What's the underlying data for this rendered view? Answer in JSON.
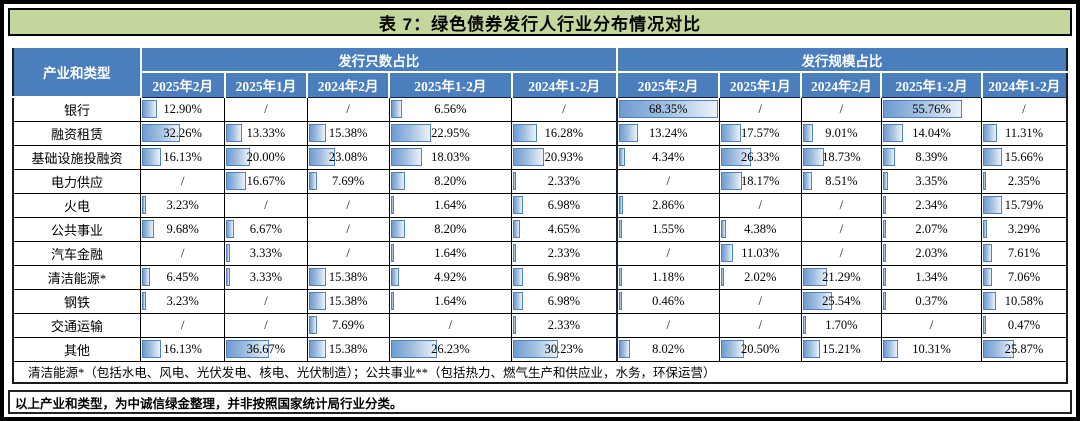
{
  "title": "表 7：绿色债券发行人行业分布情况对比",
  "table": {
    "corner_header": "产业和类型",
    "group_headers": [
      "发行只数占比",
      "发行规模占比"
    ],
    "period_headers": [
      "2025年2月",
      "2025年1月",
      "2024年2月",
      "2025年1-2月",
      "2024年1-2月"
    ],
    "bar_scale_max": 68.35,
    "rows": [
      {
        "label": "银行",
        "count_share": [
          "12.90%",
          "/",
          "/",
          "6.56%",
          "/"
        ],
        "scale_share": [
          "68.35%",
          "/",
          "/",
          "55.76%",
          "/"
        ]
      },
      {
        "label": "融资租赁",
        "count_share": [
          "32.26%",
          "13.33%",
          "15.38%",
          "22.95%",
          "16.28%"
        ],
        "scale_share": [
          "13.24%",
          "17.57%",
          "9.01%",
          "14.04%",
          "11.31%"
        ]
      },
      {
        "label": "基础设施投融资",
        "count_share": [
          "16.13%",
          "20.00%",
          "23.08%",
          "18.03%",
          "20.93%"
        ],
        "scale_share": [
          "4.34%",
          "26.33%",
          "18.73%",
          "8.39%",
          "15.66%"
        ]
      },
      {
        "label": "电力供应",
        "count_share": [
          "/",
          "16.67%",
          "7.69%",
          "8.20%",
          "2.33%"
        ],
        "scale_share": [
          "/",
          "18.17%",
          "8.51%",
          "3.35%",
          "2.35%"
        ]
      },
      {
        "label": "火电",
        "count_share": [
          "3.23%",
          "/",
          "/",
          "1.64%",
          "6.98%"
        ],
        "scale_share": [
          "2.86%",
          "/",
          "/",
          "2.34%",
          "15.79%"
        ]
      },
      {
        "label": "公共事业",
        "count_share": [
          "9.68%",
          "6.67%",
          "/",
          "8.20%",
          "4.65%"
        ],
        "scale_share": [
          "1.55%",
          "4.38%",
          "/",
          "2.07%",
          "3.29%"
        ]
      },
      {
        "label": "汽车金融",
        "count_share": [
          "/",
          "3.33%",
          "/",
          "1.64%",
          "2.33%"
        ],
        "scale_share": [
          "/",
          "11.03%",
          "/",
          "2.03%",
          "7.61%"
        ]
      },
      {
        "label": "清洁能源*",
        "count_share": [
          "6.45%",
          "3.33%",
          "15.38%",
          "4.92%",
          "6.98%"
        ],
        "scale_share": [
          "1.18%",
          "2.02%",
          "21.29%",
          "1.34%",
          "7.06%"
        ]
      },
      {
        "label": "钢铁",
        "count_share": [
          "3.23%",
          "/",
          "15.38%",
          "1.64%",
          "6.98%"
        ],
        "scale_share": [
          "0.46%",
          "/",
          "25.54%",
          "0.37%",
          "10.58%"
        ]
      },
      {
        "label": "交通运输",
        "count_share": [
          "/",
          "/",
          "7.69%",
          "/",
          "2.33%"
        ],
        "scale_share": [
          "/",
          "/",
          "1.70%",
          "/",
          "0.47%"
        ]
      },
      {
        "label": "其他",
        "count_share": [
          "16.13%",
          "36.67%",
          "15.38%",
          "26.23%",
          "30.23%"
        ],
        "scale_share": [
          "8.02%",
          "20.50%",
          "15.21%",
          "10.31%",
          "25.87%"
        ]
      }
    ],
    "footnote": "清洁能源*（包括水电、风电、光伏发电、核电、光伏制造）；公共事业**（包括热力、燃气生产和供应业，水务，环保运营）"
  },
  "note": "以上产业和类型，为中诚信绿金整理，并非按照国家统计局行业分类。",
  "colors": {
    "title_bg": "#c3d69b",
    "header_bg": "#4b7ebd",
    "bar_border": "#4f81bd"
  }
}
